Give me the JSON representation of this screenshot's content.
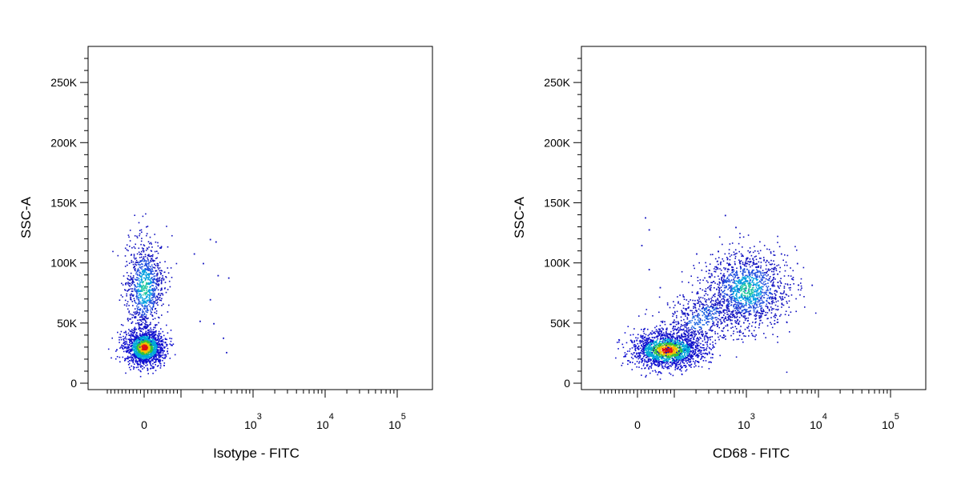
{
  "chart_data": [
    {
      "type": "scatter",
      "ylabel": "SSC-A",
      "xlabel": "Isotype - FITC",
      "ylim": [
        0,
        280000
      ],
      "y_ticks": [
        {
          "value": 0,
          "label": "0"
        },
        {
          "value": 50000,
          "label": "50K"
        },
        {
          "value": 100000,
          "label": "100K"
        },
        {
          "value": 150000,
          "label": "150K"
        },
        {
          "value": 200000,
          "label": "200K"
        },
        {
          "value": 250000,
          "label": "250K"
        }
      ],
      "x_scale": "biexponential",
      "x_ticks": [
        {
          "value": 0,
          "base": "0",
          "exp": ""
        },
        {
          "value": 1000,
          "base": "10",
          "exp": "3"
        },
        {
          "value": 10000,
          "base": "10",
          "exp": "4"
        },
        {
          "value": 100000,
          "base": "10",
          "exp": "5"
        }
      ],
      "populations": [
        {
          "x_center": 0,
          "y_center": 30000,
          "count": 1600,
          "density": "high"
        },
        {
          "x_center": 0,
          "y_center": 80000,
          "count": 900,
          "density": "medium"
        }
      ],
      "sparse_points": [
        {
          "x": 250,
          "y": 120000
        },
        {
          "x": 200,
          "y": 100000
        },
        {
          "x": 320,
          "y": 90000
        },
        {
          "x": 450,
          "y": 88000
        },
        {
          "x": 180,
          "y": 52000
        },
        {
          "x": 280,
          "y": 50000
        },
        {
          "x": 380,
          "y": 38000
        },
        {
          "x": 420,
          "y": 26000
        },
        {
          "x": 250,
          "y": 70000
        },
        {
          "x": 150,
          "y": 108000
        },
        {
          "x": 300,
          "y": 118000
        }
      ]
    },
    {
      "type": "scatter",
      "ylabel": "SSC-A",
      "xlabel": "CD68 - FITC",
      "ylim": [
        0,
        280000
      ],
      "y_ticks": [
        {
          "value": 0,
          "label": "0"
        },
        {
          "value": 50000,
          "label": "50K"
        },
        {
          "value": 100000,
          "label": "100K"
        },
        {
          "value": 150000,
          "label": "150K"
        },
        {
          "value": 200000,
          "label": "200K"
        },
        {
          "value": 250000,
          "label": "250K"
        }
      ],
      "x_scale": "biexponential",
      "x_ticks": [
        {
          "value": 0,
          "base": "0",
          "exp": ""
        },
        {
          "value": 1000,
          "base": "10",
          "exp": "3"
        },
        {
          "value": 10000,
          "base": "10",
          "exp": "4"
        },
        {
          "value": 100000,
          "base": "10",
          "exp": "5"
        }
      ],
      "populations": [
        {
          "x_center": 80,
          "y_center": 28000,
          "count": 1700,
          "density": "high"
        },
        {
          "x_center": 250,
          "y_center": 55000,
          "count": 700,
          "density": "low"
        },
        {
          "x_center": 1000,
          "y_center": 78000,
          "count": 1300,
          "density": "medium"
        }
      ],
      "sparse_points": [
        {
          "x": 20,
          "y": 138000
        },
        {
          "x": 30,
          "y": 128000
        },
        {
          "x": 10,
          "y": 115000
        },
        {
          "x": 500,
          "y": 140000
        },
        {
          "x": 700,
          "y": 130000
        },
        {
          "x": 200,
          "y": 108000
        },
        {
          "x": 400,
          "y": 110000
        },
        {
          "x": 3000,
          "y": 108000
        },
        {
          "x": 5000,
          "y": 100000
        },
        {
          "x": 8000,
          "y": 82000
        },
        {
          "x": 30,
          "y": 95000
        },
        {
          "x": 60,
          "y": 80000
        }
      ]
    }
  ]
}
